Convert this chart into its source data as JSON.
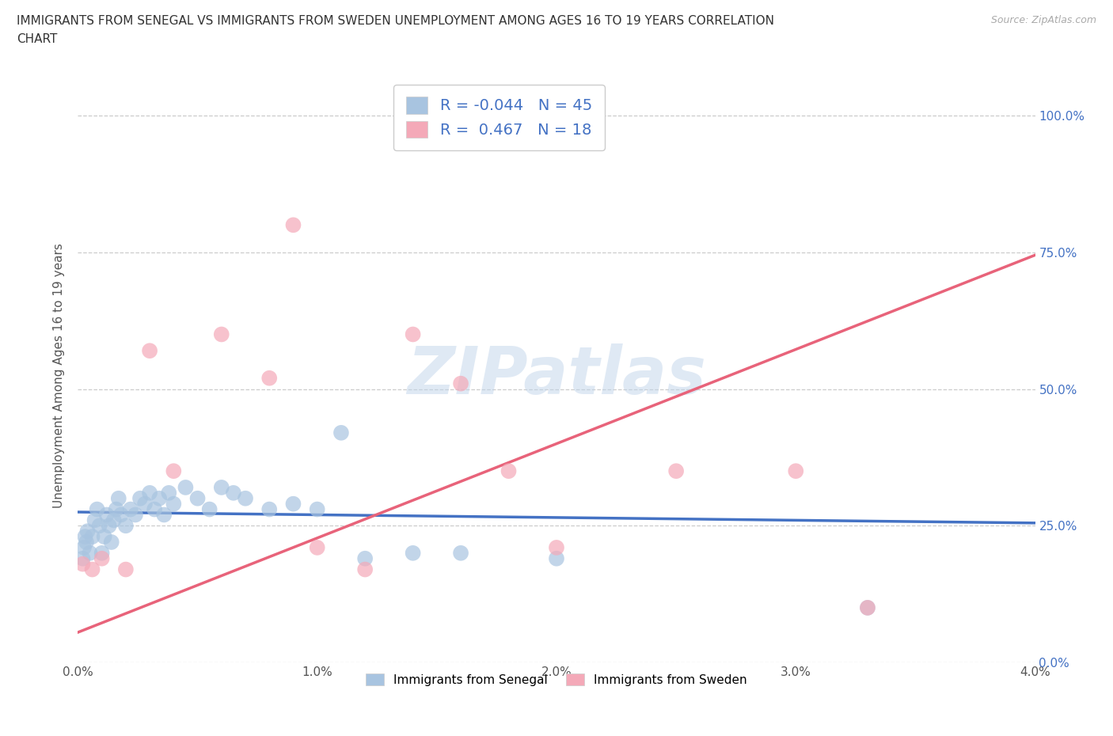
{
  "title_line1": "IMMIGRANTS FROM SENEGAL VS IMMIGRANTS FROM SWEDEN UNEMPLOYMENT AMONG AGES 16 TO 19 YEARS CORRELATION",
  "title_line2": "CHART",
  "source": "Source: ZipAtlas.com",
  "ylabel": "Unemployment Among Ages 16 to 19 years",
  "xlim": [
    0.0,
    0.04
  ],
  "ylim": [
    0.0,
    1.05
  ],
  "yticks": [
    0.0,
    0.25,
    0.5,
    0.75,
    1.0
  ],
  "ytick_labels": [
    "0.0%",
    "25.0%",
    "50.0%",
    "75.0%",
    "100.0%"
  ],
  "xticks": [
    0.0,
    0.01,
    0.02,
    0.03,
    0.04
  ],
  "xtick_labels": [
    "0.0%",
    "1.0%",
    "2.0%",
    "3.0%",
    "4.0%"
  ],
  "watermark": "ZIPatlas",
  "senegal_color": "#a8c4e0",
  "sweden_color": "#f4a9b8",
  "senegal_line_color": "#4472c4",
  "sweden_line_color": "#e8637a",
  "R_senegal": -0.044,
  "N_senegal": 45,
  "R_sweden": 0.467,
  "N_sweden": 18,
  "legend1_label": "Immigrants from Senegal",
  "legend2_label": "Immigrants from Sweden",
  "senegal_x": [
    0.0002,
    0.00025,
    0.0003,
    0.00035,
    0.0004,
    0.0005,
    0.0006,
    0.0007,
    0.0008,
    0.0009,
    0.001,
    0.0011,
    0.0012,
    0.0013,
    0.0014,
    0.0015,
    0.0016,
    0.0017,
    0.0018,
    0.002,
    0.0022,
    0.0024,
    0.0026,
    0.0028,
    0.003,
    0.0032,
    0.0034,
    0.0036,
    0.0038,
    0.004,
    0.0045,
    0.005,
    0.0055,
    0.006,
    0.0065,
    0.007,
    0.008,
    0.009,
    0.01,
    0.011,
    0.012,
    0.014,
    0.016,
    0.02,
    0.033
  ],
  "senegal_y": [
    0.19,
    0.21,
    0.23,
    0.22,
    0.24,
    0.2,
    0.23,
    0.26,
    0.28,
    0.25,
    0.2,
    0.23,
    0.27,
    0.25,
    0.22,
    0.26,
    0.28,
    0.3,
    0.27,
    0.25,
    0.28,
    0.27,
    0.3,
    0.29,
    0.31,
    0.28,
    0.3,
    0.27,
    0.31,
    0.29,
    0.32,
    0.3,
    0.28,
    0.32,
    0.31,
    0.3,
    0.28,
    0.29,
    0.28,
    0.42,
    0.19,
    0.2,
    0.2,
    0.19,
    0.1
  ],
  "sweden_x": [
    0.0002,
    0.0006,
    0.001,
    0.002,
    0.003,
    0.004,
    0.006,
    0.008,
    0.009,
    0.01,
    0.012,
    0.014,
    0.016,
    0.018,
    0.02,
    0.025,
    0.03,
    0.033
  ],
  "sweden_y": [
    0.18,
    0.17,
    0.19,
    0.17,
    0.57,
    0.35,
    0.6,
    0.52,
    0.8,
    0.21,
    0.17,
    0.6,
    0.51,
    0.35,
    0.21,
    0.35,
    0.35,
    0.1
  ],
  "senegal_trendline_x": [
    0.0,
    0.04
  ],
  "senegal_trendline_y": [
    0.275,
    0.255
  ],
  "sweden_trendline_x": [
    0.0,
    0.04
  ],
  "sweden_trendline_y": [
    0.055,
    0.745
  ]
}
